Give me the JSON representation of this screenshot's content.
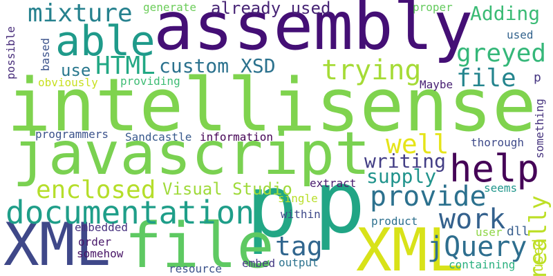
{
  "words": [
    {
      "id": "assembly",
      "text": "assembly",
      "color": "#440f75"
    },
    {
      "id": "intellisense",
      "text": "intellisense",
      "color": "#7fd34e"
    },
    {
      "id": "javascript",
      "text": "javascript",
      "color": "#7ad151"
    },
    {
      "id": "p-1",
      "text": "p",
      "color": "#22a785"
    },
    {
      "id": "p-2",
      "text": "p",
      "color": "#21a585"
    },
    {
      "id": "xml-1",
      "text": "XML",
      "color": "#3f4889"
    },
    {
      "id": "xml-2",
      "text": "XML",
      "color": "#d8e219"
    },
    {
      "id": "file-1",
      "text": "file",
      "color": "#5ec962"
    },
    {
      "id": "file-2",
      "text": "file",
      "color": "#25858e"
    },
    {
      "id": "help",
      "text": "help",
      "color": "#450457"
    },
    {
      "id": "documentation",
      "text": "documentation",
      "color": "#1f9e89"
    },
    {
      "id": "able",
      "text": "able",
      "color": "#1f9a8a"
    },
    {
      "id": "mixture",
      "text": "mixture",
      "color": "#26818e"
    },
    {
      "id": "already-used",
      "text": "already used",
      "color": "#482576"
    },
    {
      "id": "adding",
      "text": "Adding",
      "color": "#3bbb75"
    },
    {
      "id": "greyed",
      "text": "greyed",
      "color": "#35b779"
    },
    {
      "id": "trying",
      "text": "trying",
      "color": "#a5db36"
    },
    {
      "id": "html",
      "text": "HTML",
      "color": "#22a884"
    },
    {
      "id": "custom-xsd",
      "text": "custom XSD",
      "color": "#2c728e"
    },
    {
      "id": "use",
      "text": "use",
      "color": "#2a788e"
    },
    {
      "id": "enclosed",
      "text": "enclosed",
      "color": "#b5de2b"
    },
    {
      "id": "visual-studio",
      "text": "Visual Studio",
      "color": "#9fda3a"
    },
    {
      "id": "provide",
      "text": "provide",
      "color": "#2c718e"
    },
    {
      "id": "supply",
      "text": "supply",
      "color": "#20938c"
    },
    {
      "id": "writing",
      "text": "writing",
      "color": "#433e85"
    },
    {
      "id": "well",
      "text": "well",
      "color": "#e5e419"
    },
    {
      "id": "work",
      "text": "work",
      "color": "#34618d"
    },
    {
      "id": "really",
      "text": "really",
      "color": "#bddf26"
    },
    {
      "id": "tag",
      "text": "tag",
      "color": "#31668e"
    },
    {
      "id": "jquery",
      "text": "jQuery",
      "color": "#2e6e8e"
    },
    {
      "id": "generate",
      "text": "generate",
      "color": "#6ccd5a"
    },
    {
      "id": "proper",
      "text": "proper",
      "color": "#65cb5e"
    },
    {
      "id": "used-1",
      "text": "used",
      "color": "#33638d"
    },
    {
      "id": "possible",
      "text": "possible",
      "color": "#472c7a"
    },
    {
      "id": "based",
      "text": "based",
      "color": "#3b528b"
    },
    {
      "id": "obviously",
      "text": "obviously",
      "color": "#c8e020"
    },
    {
      "id": "providing",
      "text": "providing",
      "color": "#3dbc74"
    },
    {
      "id": "maybe",
      "text": "Maybe",
      "color": "#482173"
    },
    {
      "id": "p-small",
      "text": "p",
      "color": "#453581"
    },
    {
      "id": "programmers",
      "text": "programmers",
      "color": "#3b528b"
    },
    {
      "id": "sandcastle",
      "text": "Sandcastle",
      "color": "#38598c"
    },
    {
      "id": "information",
      "text": "information",
      "color": "#440154"
    },
    {
      "id": "something",
      "text": "something",
      "color": "#46337e"
    },
    {
      "id": "thorough",
      "text": "thorough",
      "color": "#3e4a89"
    },
    {
      "id": "extract",
      "text": "extract",
      "color": "#481b6d"
    },
    {
      "id": "seems",
      "text": "seems",
      "color": "#1f968b"
    },
    {
      "id": "single",
      "text": "single",
      "color": "#b8de29"
    },
    {
      "id": "within",
      "text": "within",
      "color": "#3e4989"
    },
    {
      "id": "product",
      "text": "product",
      "color": "#2d708e"
    },
    {
      "id": "embedded",
      "text": "embedded",
      "color": "#46307e"
    },
    {
      "id": "order",
      "text": "order",
      "color": "#48186a"
    },
    {
      "id": "somehow",
      "text": "somehow",
      "color": "#471365"
    },
    {
      "id": "user",
      "text": "user",
      "color": "#8ed645"
    },
    {
      "id": "dll",
      "text": "dll",
      "color": "#365d8d"
    },
    {
      "id": "used-2",
      "text": "used",
      "color": "#c2df23"
    },
    {
      "id": "embed",
      "text": "embed",
      "color": "#443983"
    },
    {
      "id": "output",
      "text": "output",
      "color": "#2c728e"
    },
    {
      "id": "resource",
      "text": "resource",
      "color": "#3b528b"
    },
    {
      "id": "containing",
      "text": "containing",
      "color": "#2ab07f"
    }
  ]
}
